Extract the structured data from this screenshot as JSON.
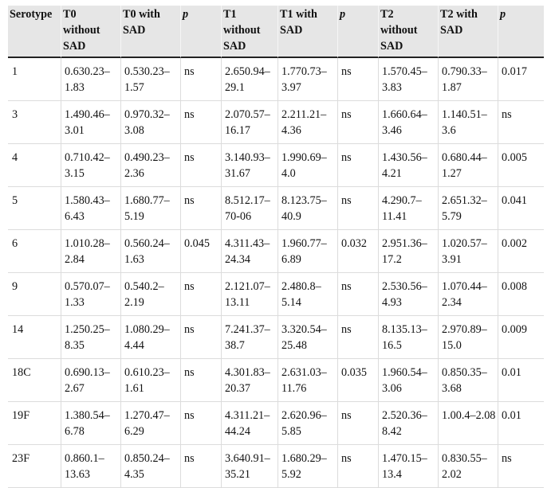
{
  "table": {
    "headers": [
      {
        "line1": "Serotype",
        "line2": "",
        "line3": "",
        "italic": false
      },
      {
        "line1": "T0",
        "line2": "without",
        "line3": "SAD",
        "italic": false
      },
      {
        "line1": "T0 with",
        "line2": "SAD",
        "line3": "",
        "italic": false
      },
      {
        "line1": "p",
        "line2": "",
        "line3": "",
        "italic": true
      },
      {
        "line1": "T1",
        "line2": "without",
        "line3": "SAD",
        "italic": false
      },
      {
        "line1": "T1 with",
        "line2": "SAD",
        "line3": "",
        "italic": false
      },
      {
        "line1": "p",
        "line2": "",
        "line3": "",
        "italic": true
      },
      {
        "line1": "T2",
        "line2": "without",
        "line3": "SAD",
        "italic": false
      },
      {
        "line1": "T2 with",
        "line2": "SAD",
        "line3": "",
        "italic": false
      },
      {
        "line1": "p",
        "line2": "",
        "line3": "",
        "italic": true
      }
    ],
    "rows": [
      [
        "1",
        "0.630.23–1.83",
        "0.530.23–1.57",
        "ns",
        "2.650.94–29.1",
        "1.770.73–3.97",
        "ns",
        "1.570.45–3.83",
        "0.790.33–1.87",
        "0.017"
      ],
      [
        "3",
        "1.490.46–3.01",
        "0.970.32–3.08",
        "ns",
        "2.070.57–16.17",
        "2.211.21–4.36",
        "ns",
        "1.660.64–3.46",
        "1.140.51–3.6",
        "ns"
      ],
      [
        "4",
        "0.710.42–3.15",
        "0.490.23–2.36",
        "ns",
        "3.140.93–31.67",
        "1.990.69–4.0",
        "ns",
        "1.430.56–4.21",
        "0.680.44–1.27",
        "0.005"
      ],
      [
        "5",
        "1.580.43–6.43",
        "1.680.77–5.19",
        "ns",
        "8.512.17–70-06",
        "8.123.75–40.9",
        "ns",
        "4.290.7–11.41",
        "2.651.32–5.79",
        "0.041"
      ],
      [
        "6",
        "1.010.28–2.84",
        "0.560.24–1.63",
        "0.045",
        "4.311.43–24.34",
        "1.960.77–6.89",
        "0.032",
        "2.951.36–17.2",
        "1.020.57–3.91",
        "0.002"
      ],
      [
        "9",
        "0.570.07–1.33",
        "0.540.2–2.19",
        "ns",
        "2.121.07–13.11",
        "2.480.8–5.14",
        "ns",
        "2.530.56–4.93",
        "1.070.44–2.34",
        "0.008"
      ],
      [
        "14",
        "1.250.25–8.35",
        "1.080.29–4.44",
        "ns",
        "7.241.37–38.7",
        "3.320.54–25.48",
        "ns",
        "8.135.13–16.5",
        "2.970.89–15.0",
        "0.009"
      ],
      [
        "18C",
        "0.690.13–2.67",
        "0.610.23–1.61",
        "ns",
        "4.301.83–20.37",
        "2.631.03–11.76",
        "0.035",
        "1.960.54–3.06",
        "0.850.35–3.68",
        "0.01"
      ],
      [
        "19F",
        "1.380.54–6.78",
        "1.270.47–6.29",
        "ns",
        "4.311.21–44.24",
        "2.620.96–5.85",
        "ns",
        "2.520.36–8.42",
        "1.00.4–2.08",
        "0.01"
      ],
      [
        "23F",
        "0.860.1–13.63",
        "0.850.24–4.35",
        "ns",
        "3.640.91–35.21",
        "1.680.29–5.92",
        "ns",
        "1.470.15–13.4",
        "0.830.55–2.02",
        "ns"
      ]
    ]
  }
}
